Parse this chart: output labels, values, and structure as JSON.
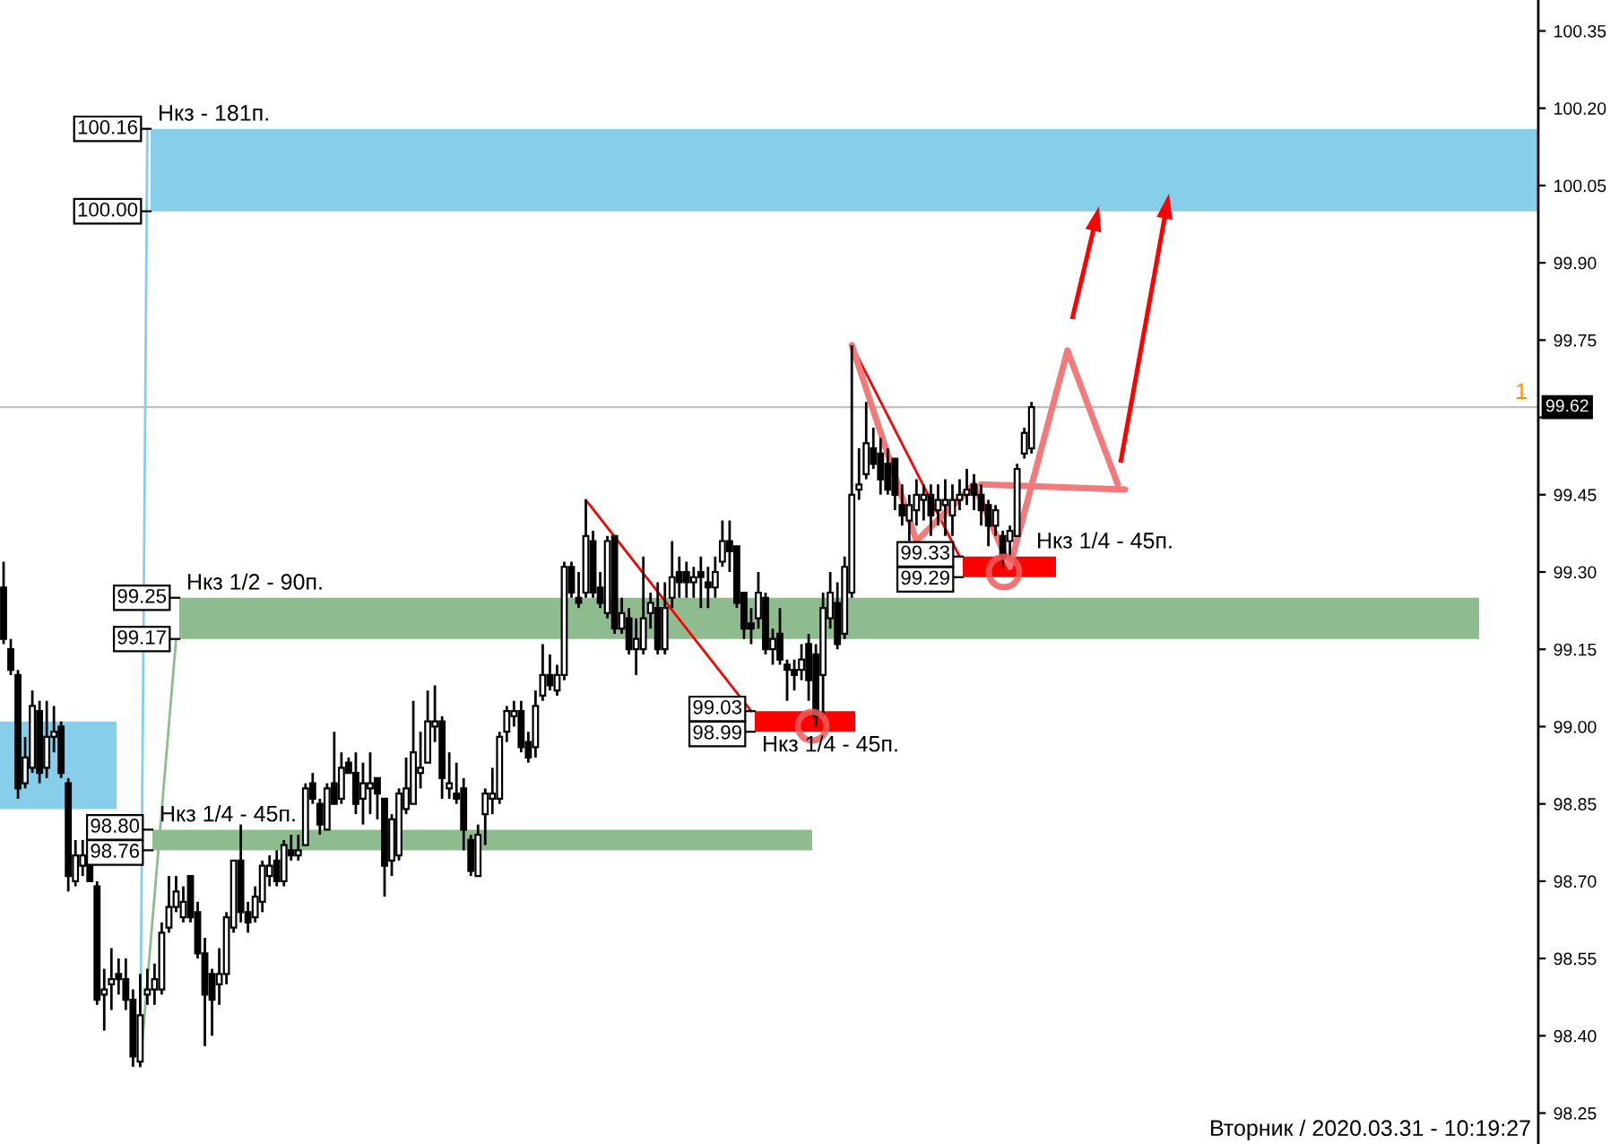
{
  "chart_data": {
    "type": "candlestick",
    "categories": [
      null,
      null,
      null,
      null,
      null,
      null,
      null,
      null,
      null,
      null,
      null,
      null,
      null,
      null,
      null,
      null,
      null,
      null,
      null,
      null,
      null,
      null,
      null,
      null,
      null,
      null,
      null,
      null,
      null,
      null,
      null,
      null,
      null,
      null,
      null,
      null,
      null,
      null,
      null,
      null,
      null,
      null,
      null,
      null,
      null,
      null,
      null,
      null,
      null,
      null,
      null,
      null,
      null,
      null,
      null,
      null,
      null,
      null,
      null,
      null,
      null,
      null,
      null,
      null,
      null,
      null,
      null,
      null,
      null,
      null,
      null,
      null,
      null,
      null,
      null,
      null,
      null,
      null,
      null,
      null,
      null,
      null,
      null,
      null,
      null,
      null,
      null,
      null,
      null,
      null,
      null,
      null,
      null,
      null,
      null,
      null,
      null,
      null,
      null,
      null,
      null,
      null,
      null,
      null,
      null,
      null,
      null,
      null,
      null,
      null,
      null,
      null,
      null,
      null,
      null,
      null,
      null,
      null,
      null,
      null,
      null,
      null,
      null,
      null,
      null,
      null,
      null,
      null,
      null,
      null,
      null,
      null,
      null,
      null,
      null,
      null,
      null,
      null,
      null,
      null,
      null,
      null,
      null,
      null,
      null,
      null,
      null,
      null,
      null,
      null,
      null,
      null,
      null,
      null,
      null,
      null,
      null,
      null,
      null,
      null,
      null,
      null,
      null,
      null,
      null,
      null,
      null,
      null,
      null,
      null,
      null,
      null,
      null,
      null,
      null,
      null,
      null,
      null,
      null,
      null,
      null,
      null,
      null,
      null,
      null,
      null,
      null,
      null,
      null,
      null,
      null,
      null,
      null,
      null,
      null,
      null,
      null,
      null,
      null,
      null,
      null,
      null,
      null,
      null,
      null,
      null,
      null,
      null,
      null,
      null,
      null,
      null,
      null,
      null
    ],
    "ohlc": [
      [
        99.27,
        99.32,
        99.16,
        99.17
      ],
      [
        99.15,
        99.17,
        99.1,
        99.11
      ],
      [
        99.1,
        99.11,
        98.86,
        98.88
      ],
      [
        98.89,
        98.98,
        98.88,
        98.94
      ],
      [
        98.92,
        99.07,
        98.91,
        99.04
      ],
      [
        99.03,
        99.05,
        98.89,
        98.91
      ],
      [
        98.92,
        99.05,
        98.9,
        98.98
      ],
      [
        98.98,
        99.04,
        98.95,
        98.99
      ],
      [
        99.0,
        99.01,
        98.9,
        98.91
      ],
      [
        98.89,
        98.9,
        98.68,
        98.71
      ],
      [
        98.7,
        98.78,
        98.69,
        98.75
      ],
      [
        98.73,
        98.78,
        98.71,
        98.75
      ],
      [
        98.74,
        98.75,
        98.7,
        98.7
      ],
      [
        98.69,
        98.7,
        98.46,
        98.47
      ],
      [
        98.48,
        98.53,
        98.41,
        98.49
      ],
      [
        98.5,
        98.57,
        98.45,
        98.51
      ],
      [
        98.52,
        98.55,
        98.48,
        98.51
      ],
      [
        98.51,
        98.55,
        98.45,
        98.47
      ],
      [
        98.47,
        98.49,
        98.34,
        98.36
      ],
      [
        98.35,
        98.52,
        98.34,
        98.44
      ],
      [
        98.48,
        98.53,
        98.46,
        98.49
      ],
      [
        98.49,
        98.54,
        98.46,
        98.51
      ],
      [
        98.49,
        98.62,
        98.48,
        98.6
      ],
      [
        98.61,
        98.71,
        98.6,
        98.65
      ],
      [
        98.65,
        98.71,
        98.64,
        98.68
      ],
      [
        98.63,
        98.69,
        98.62,
        98.66
      ],
      [
        98.71,
        98.71,
        98.62,
        98.63
      ],
      [
        98.64,
        98.66,
        98.55,
        98.56
      ],
      [
        98.56,
        98.59,
        98.38,
        98.48
      ],
      [
        98.52,
        98.53,
        98.4,
        98.47
      ],
      [
        98.5,
        98.57,
        98.46,
        98.52
      ],
      [
        98.52,
        98.64,
        98.5,
        98.63
      ],
      [
        98.61,
        98.74,
        98.6,
        98.74
      ],
      [
        98.74,
        98.81,
        98.62,
        98.64
      ],
      [
        98.64,
        98.66,
        98.6,
        98.62
      ],
      [
        98.63,
        98.69,
        98.62,
        98.67
      ],
      [
        98.66,
        98.74,
        98.64,
        98.73
      ],
      [
        98.71,
        98.75,
        98.69,
        98.73
      ],
      [
        98.74,
        98.76,
        98.69,
        98.7
      ],
      [
        98.7,
        98.78,
        98.69,
        98.77
      ],
      [
        98.76,
        98.79,
        98.74,
        98.75
      ],
      [
        98.75,
        98.79,
        98.74,
        98.76
      ],
      [
        98.77,
        98.89,
        98.77,
        98.88
      ],
      [
        98.89,
        98.91,
        98.85,
        98.86
      ],
      [
        98.85,
        98.86,
        98.79,
        98.81
      ],
      [
        98.8,
        98.89,
        98.8,
        98.88
      ],
      [
        98.89,
        98.99,
        98.85,
        98.85
      ],
      [
        98.86,
        98.95,
        98.85,
        98.92
      ],
      [
        98.93,
        98.94,
        98.91,
        98.91
      ],
      [
        98.91,
        98.95,
        98.83,
        98.85
      ],
      [
        98.86,
        98.93,
        98.81,
        98.89
      ],
      [
        98.88,
        98.95,
        98.83,
        98.89
      ],
      [
        98.9,
        98.9,
        98.82,
        98.87
      ],
      [
        98.86,
        98.86,
        98.67,
        98.73
      ],
      [
        98.74,
        98.83,
        98.71,
        98.82
      ],
      [
        98.75,
        98.88,
        98.74,
        98.87
      ],
      [
        98.84,
        98.94,
        98.83,
        98.88
      ],
      [
        98.85,
        99.05,
        98.85,
        98.95
      ],
      [
        98.91,
        98.99,
        98.88,
        98.92
      ],
      [
        98.93,
        99.07,
        98.93,
        99.01
      ],
      [
        99.0,
        99.08,
        98.97,
        99.01
      ],
      [
        99.01,
        99.02,
        98.86,
        98.9
      ],
      [
        98.88,
        98.95,
        98.86,
        98.89
      ],
      [
        98.87,
        98.93,
        98.85,
        98.86
      ],
      [
        98.88,
        98.9,
        98.76,
        98.8
      ],
      [
        98.78,
        98.79,
        98.71,
        98.72
      ],
      [
        98.71,
        98.81,
        98.71,
        98.79
      ],
      [
        98.83,
        98.88,
        98.77,
        98.87
      ],
      [
        98.86,
        98.92,
        98.83,
        98.87
      ],
      [
        98.86,
        98.99,
        98.85,
        98.98
      ],
      [
        98.99,
        99.04,
        98.97,
        99.03
      ],
      [
        99.02,
        99.05,
        99.0,
        99.03
      ],
      [
        99.03,
        99.05,
        98.95,
        98.96
      ],
      [
        98.97,
        98.99,
        98.93,
        98.94
      ],
      [
        98.96,
        99.07,
        98.94,
        99.04
      ],
      [
        99.06,
        99.16,
        99.05,
        99.1
      ],
      [
        99.1,
        99.14,
        99.07,
        99.08
      ],
      [
        99.07,
        99.12,
        99.06,
        99.1
      ],
      [
        99.1,
        99.32,
        99.09,
        99.31
      ],
      [
        99.31,
        99.32,
        99.25,
        99.26
      ],
      [
        99.25,
        99.3,
        99.23,
        99.24
      ],
      [
        99.26,
        99.44,
        99.25,
        99.37
      ],
      [
        99.36,
        99.38,
        99.25,
        99.26
      ],
      [
        99.27,
        99.3,
        99.23,
        99.24
      ],
      [
        99.22,
        99.37,
        99.21,
        99.36
      ],
      [
        99.37,
        99.37,
        99.18,
        99.19
      ],
      [
        99.19,
        99.25,
        99.18,
        99.22
      ],
      [
        99.21,
        99.23,
        99.14,
        99.15
      ],
      [
        99.15,
        99.21,
        99.1,
        99.17
      ],
      [
        99.15,
        99.33,
        99.14,
        99.21
      ],
      [
        99.22,
        99.26,
        99.19,
        99.24
      ],
      [
        99.23,
        99.28,
        99.14,
        99.15
      ],
      [
        99.15,
        99.28,
        99.14,
        99.23
      ],
      [
        99.25,
        99.36,
        99.23,
        99.29
      ],
      [
        99.3,
        99.33,
        99.25,
        99.28
      ],
      [
        99.3,
        99.32,
        99.25,
        99.28
      ],
      [
        99.28,
        99.31,
        99.25,
        99.29
      ],
      [
        99.3,
        99.33,
        99.23,
        99.29
      ],
      [
        99.28,
        99.31,
        99.23,
        99.27
      ],
      [
        99.27,
        99.33,
        99.25,
        99.3
      ],
      [
        99.32,
        99.4,
        99.31,
        99.36
      ],
      [
        99.36,
        99.4,
        99.3,
        99.34
      ],
      [
        99.35,
        99.35,
        99.23,
        99.24
      ],
      [
        99.26,
        99.26,
        99.17,
        99.19
      ],
      [
        99.2,
        99.23,
        99.16,
        99.19
      ],
      [
        99.21,
        99.3,
        99.19,
        99.26
      ],
      [
        99.25,
        99.26,
        99.14,
        99.15
      ],
      [
        99.15,
        99.19,
        99.12,
        99.17
      ],
      [
        99.18,
        99.23,
        99.12,
        99.13
      ],
      [
        99.12,
        99.13,
        99.05,
        99.11
      ],
      [
        99.11,
        99.13,
        99.07,
        99.1
      ],
      [
        99.11,
        99.16,
        99.09,
        99.13
      ],
      [
        99.16,
        99.18,
        99.05,
        99.09
      ],
      [
        99.14,
        99.16,
        99.0,
        99.02
      ],
      [
        99.1,
        99.26,
        99.02,
        99.23
      ],
      [
        99.21,
        99.3,
        99.19,
        99.26
      ],
      [
        99.24,
        99.28,
        99.15,
        99.16
      ],
      [
        99.18,
        99.33,
        99.17,
        99.31
      ],
      [
        99.26,
        99.74,
        99.25,
        99.45
      ],
      [
        99.46,
        99.54,
        99.44,
        99.47
      ],
      [
        99.49,
        99.63,
        99.48,
        99.55
      ],
      [
        99.54,
        99.58,
        99.5,
        99.51
      ],
      [
        99.53,
        99.56,
        99.45,
        99.48
      ],
      [
        99.51,
        99.54,
        99.45,
        99.46
      ],
      [
        99.52,
        99.52,
        99.42,
        99.45
      ],
      [
        99.43,
        99.47,
        99.39,
        99.41
      ],
      [
        99.4,
        99.45,
        99.36,
        99.43
      ],
      [
        99.42,
        99.48,
        99.39,
        99.45
      ],
      [
        99.44,
        99.47,
        99.4,
        99.45
      ],
      [
        99.45,
        99.47,
        99.37,
        99.41
      ],
      [
        99.42,
        99.47,
        99.39,
        99.44
      ],
      [
        99.43,
        99.48,
        99.37,
        99.44
      ],
      [
        99.41,
        99.47,
        99.37,
        99.44
      ],
      [
        99.44,
        99.48,
        99.42,
        99.45
      ],
      [
        99.45,
        99.5,
        99.43,
        99.46
      ],
      [
        99.47,
        99.49,
        99.42,
        99.45
      ],
      [
        99.45,
        99.47,
        99.39,
        99.42
      ],
      [
        99.43,
        99.44,
        99.35,
        99.39
      ],
      [
        99.39,
        99.43,
        99.37,
        99.42
      ],
      [
        99.37,
        99.38,
        99.31,
        99.33
      ],
      [
        99.36,
        99.39,
        99.33,
        99.38
      ],
      [
        99.37,
        99.51,
        99.37,
        99.5
      ],
      [
        99.53,
        99.58,
        99.52,
        99.57
      ],
      [
        99.54,
        99.63,
        99.53,
        99.62
      ],
      null,
      null,
      null,
      null,
      null,
      null,
      null,
      null,
      null,
      null,
      null,
      null,
      null,
      null,
      null,
      null,
      null,
      null,
      null,
      null,
      null,
      null,
      null,
      null,
      null,
      null,
      null,
      null,
      null,
      null,
      null,
      null,
      null,
      null,
      null,
      null,
      null,
      null,
      null,
      null,
      null,
      null,
      null,
      null,
      null,
      null,
      null,
      null,
      null,
      null,
      null,
      null,
      null,
      null,
      null,
      null,
      null,
      null,
      null,
      null,
      null,
      null,
      null,
      null,
      null,
      null,
      null,
      null,
      null,
      null
    ],
    "series": [
      {
        "type": "line",
        "color": "#87ceeb",
        "values": [
          null,
          null,
          null,
          null,
          null,
          null,
          null,
          null,
          null,
          null,
          null,
          null,
          null,
          null,
          null,
          null,
          null,
          null,
          null,
          98.34,
          100.16,
          null,
          null,
          null,
          null,
          null,
          null,
          null,
          null,
          null,
          null,
          null,
          null,
          null,
          null,
          null,
          null,
          null,
          null,
          null,
          null,
          null,
          null,
          null,
          null,
          null,
          null,
          null,
          null,
          null,
          null,
          null,
          null,
          null,
          null,
          null,
          null,
          null,
          null,
          null,
          null,
          null,
          null,
          null,
          null,
          null,
          null,
          null,
          null,
          null,
          null,
          null,
          null,
          null,
          null,
          null,
          null,
          null,
          null,
          null,
          null,
          null,
          null,
          null,
          null,
          null,
          null,
          null,
          null,
          null,
          null,
          null,
          null,
          null,
          null,
          null,
          null,
          null,
          null,
          null,
          null,
          null,
          null,
          null,
          null,
          null,
          null,
          null,
          null,
          null,
          null,
          null,
          null,
          null,
          null,
          null,
          null,
          null,
          null,
          null,
          null,
          null,
          null,
          null,
          null,
          null,
          null,
          null,
          null,
          null,
          null,
          null,
          null,
          null,
          null,
          null,
          null,
          null,
          null,
          null,
          null,
          null,
          null,
          null,
          null,
          null,
          null,
          null,
          null,
          null,
          null,
          null,
          null,
          null,
          null,
          null,
          null,
          null,
          null,
          null,
          null,
          null,
          null,
          null,
          null,
          null,
          null,
          null,
          null,
          null,
          null,
          null,
          null,
          null,
          null,
          null,
          null,
          null,
          null,
          null,
          null,
          null,
          null,
          null,
          null,
          null,
          null,
          null,
          null,
          null,
          null,
          null,
          null,
          null,
          null,
          null,
          null,
          null,
          null,
          null,
          null,
          null,
          null,
          null,
          null,
          null,
          null,
          null,
          null,
          null,
          null,
          null,
          null,
          null
        ]
      },
      {
        "type": "line",
        "color": "#8fbc8f",
        "values": [
          null,
          null,
          null,
          null,
          null,
          null,
          null,
          null,
          null,
          null,
          null,
          null,
          null,
          null,
          null,
          null,
          null,
          null,
          null,
          98.34,
          null,
          null,
          null,
          null,
          99.17,
          null,
          null,
          null,
          null,
          null,
          null,
          null,
          null,
          null,
          null,
          null,
          null,
          null,
          null,
          null,
          null,
          null,
          null,
          null,
          null,
          null,
          null,
          null,
          null,
          null,
          null,
          null,
          null,
          null,
          null,
          null,
          null,
          null,
          null,
          null,
          null,
          null,
          null,
          null,
          null,
          null,
          null,
          null,
          null,
          null,
          null,
          null,
          null,
          null,
          null,
          null,
          null,
          null,
          null,
          null,
          null,
          null,
          null,
          null,
          null,
          null,
          null,
          null,
          null,
          null,
          null,
          null,
          null,
          null,
          null,
          null,
          null,
          null,
          null,
          null,
          null,
          null,
          null,
          null,
          null,
          null,
          null,
          null,
          null,
          null,
          null,
          null,
          null,
          null,
          null,
          null,
          null,
          null,
          null,
          null,
          null,
          null,
          null,
          null,
          null,
          null,
          null,
          null,
          null,
          null,
          null,
          null,
          null,
          null,
          null,
          null,
          null,
          null,
          null,
          null,
          null,
          null,
          null,
          null,
          null,
          null,
          null,
          null,
          null,
          null,
          null,
          null,
          null,
          null,
          null,
          null,
          null,
          null,
          null,
          null,
          null,
          null,
          null,
          null,
          null,
          null,
          null,
          null,
          null,
          null,
          null,
          null,
          null,
          null,
          null,
          null,
          null,
          null,
          null,
          null,
          null,
          null,
          null,
          null,
          null,
          null,
          null,
          null,
          null,
          null,
          null,
          null,
          null,
          null,
          null,
          null,
          null,
          null,
          null,
          null,
          null,
          null,
          null,
          null,
          null,
          null,
          null,
          null,
          null,
          null,
          null,
          null,
          null,
          null
        ]
      },
      {
        "type": "line",
        "color": "#ff0000",
        "values": [
          null,
          null,
          null,
          null,
          null,
          null,
          null,
          null,
          null,
          null,
          null,
          null,
          null,
          null,
          null,
          null,
          null,
          null,
          null,
          null,
          null,
          null,
          null,
          null,
          null,
          null,
          null,
          null,
          null,
          null,
          null,
          null,
          null,
          null,
          null,
          null,
          null,
          null,
          null,
          null,
          null,
          null,
          null,
          null,
          null,
          null,
          null,
          null,
          null,
          null,
          null,
          null,
          null,
          null,
          null,
          null,
          null,
          null,
          null,
          null,
          null,
          null,
          null,
          null,
          null,
          null,
          null,
          null,
          null,
          null,
          null,
          null,
          null,
          null,
          null,
          null,
          null,
          null,
          null,
          null,
          null,
          99.44,
          null,
          null,
          null,
          null,
          null,
          null,
          null,
          null,
          null,
          null,
          null,
          null,
          null,
          null,
          null,
          null,
          null,
          null,
          null,
          null,
          null,
          null,
          99.03,
          null,
          null,
          null,
          null,
          null,
          null,
          null,
          null,
          null,
          null,
          null,
          null,
          null,
          null,
          null,
          null,
          null,
          null,
          null,
          null,
          null,
          null,
          null,
          null,
          null,
          null,
          null,
          null,
          null,
          null,
          null,
          null,
          null,
          null,
          null,
          null,
          null,
          null,
          null,
          null,
          null,
          null,
          null,
          null,
          null,
          null,
          null,
          null,
          null,
          null,
          null,
          null,
          null,
          null,
          null,
          null,
          null,
          null,
          null,
          null,
          null,
          null,
          null,
          null,
          null,
          null,
          null,
          null,
          null,
          null,
          null,
          null,
          null,
          null,
          null,
          null,
          null,
          null,
          null,
          null,
          null,
          null,
          null,
          null,
          null,
          null,
          null,
          null,
          null,
          null,
          null,
          null,
          null,
          null,
          null,
          null,
          null,
          null,
          null,
          null,
          null,
          null,
          null,
          null,
          null,
          null,
          null,
          null,
          null
        ]
      },
      {
        "type": "line",
        "color": "#ff0000",
        "values": [
          null,
          null,
          null,
          null,
          null,
          null,
          null,
          null,
          null,
          null,
          null,
          null,
          null,
          null,
          null,
          null,
          null,
          null,
          null,
          null,
          null,
          null,
          null,
          null,
          null,
          null,
          null,
          null,
          null,
          null,
          null,
          null,
          null,
          null,
          null,
          null,
          null,
          null,
          null,
          null,
          null,
          null,
          null,
          null,
          null,
          null,
          null,
          null,
          null,
          null,
          null,
          null,
          null,
          null,
          null,
          null,
          null,
          null,
          null,
          null,
          null,
          null,
          null,
          null,
          null,
          null,
          null,
          null,
          null,
          null,
          null,
          null,
          null,
          null,
          null,
          null,
          null,
          null,
          null,
          null,
          null,
          null,
          null,
          null,
          null,
          null,
          null,
          null,
          null,
          null,
          null,
          null,
          null,
          null,
          null,
          null,
          null,
          null,
          null,
          null,
          null,
          null,
          null,
          null,
          null,
          null,
          null,
          null,
          null,
          null,
          null,
          null,
          null,
          null,
          null,
          null,
          null,
          null,
          99.74,
          null,
          null,
          null,
          null,
          null,
          null,
          null,
          null,
          null,
          null,
          null,
          null,
          null,
          null,
          99.33,
          null,
          null,
          null,
          null,
          null,
          null,
          null,
          null,
          null,
          null,
          null,
          null,
          null,
          null,
          null,
          null,
          null,
          null,
          null,
          null,
          null,
          null,
          null,
          null,
          null,
          null,
          null,
          null,
          null,
          null,
          null,
          null,
          null,
          null,
          null,
          null,
          null,
          null,
          null,
          null,
          null,
          null,
          null,
          null,
          null,
          null,
          null,
          null,
          null,
          null,
          null,
          null,
          null,
          null,
          null,
          null,
          null,
          null,
          null,
          null,
          null,
          null,
          null,
          null,
          null,
          null,
          null,
          null,
          null,
          null,
          null,
          null,
          null,
          null,
          null,
          null,
          null,
          null,
          null,
          null
        ]
      },
      {
        "type": "line",
        "color": "#f27a7a",
        "values": [
          null,
          null,
          null,
          null,
          null,
          null,
          null,
          null,
          null,
          null,
          null,
          null,
          null,
          null,
          null,
          null,
          null,
          null,
          null,
          null,
          null,
          null,
          null,
          null,
          null,
          null,
          null,
          null,
          null,
          null,
          null,
          null,
          null,
          null,
          null,
          null,
          null,
          null,
          null,
          null,
          null,
          null,
          null,
          null,
          null,
          null,
          null,
          null,
          null,
          null,
          null,
          null,
          null,
          null,
          null,
          null,
          null,
          null,
          null,
          null,
          null,
          null,
          null,
          null,
          null,
          null,
          null,
          null,
          null,
          null,
          null,
          null,
          null,
          null,
          null,
          null,
          null,
          null,
          null,
          null,
          null,
          null,
          null,
          null,
          null,
          null,
          null,
          null,
          null,
          null,
          null,
          null,
          null,
          null,
          null,
          null,
          null,
          null,
          null,
          null,
          null,
          null,
          null,
          null,
          null,
          null,
          null,
          null,
          null,
          null,
          null,
          null,
          null,
          null,
          null,
          null,
          null,
          null,
          99.74,
          null,
          null,
          null,
          null,
          null,
          null,
          null,
          null,
          99.36,
          null,
          null,
          null,
          null,
          null,
          null,
          null,
          99.47,
          null,
          null,
          null,
          null,
          99.31,
          null,
          null,
          null,
          null,
          null,
          null,
          null,
          99.73,
          null,
          null,
          null,
          null,
          null,
          null,
          99.47,
          null,
          null,
          null,
          null,
          null,
          null,
          null,
          null,
          null,
          null,
          null,
          null,
          null,
          null,
          null,
          null,
          null,
          null,
          null,
          null,
          null,
          null,
          null,
          null,
          null,
          null,
          null,
          null,
          null,
          null,
          null,
          null,
          null,
          null,
          null,
          null,
          null,
          null,
          null,
          null,
          null,
          null,
          null,
          null,
          null,
          null,
          null,
          null,
          null,
          null,
          null,
          null,
          null,
          null,
          null,
          null,
          null,
          null
        ]
      },
      {
        "type": "line",
        "color": "#f27a7a",
        "values": [
          null,
          null,
          null,
          null,
          null,
          null,
          null,
          null,
          null,
          null,
          null,
          null,
          null,
          null,
          null,
          null,
          null,
          null,
          null,
          null,
          null,
          null,
          null,
          null,
          null,
          null,
          null,
          null,
          null,
          null,
          null,
          null,
          null,
          null,
          null,
          null,
          null,
          null,
          null,
          null,
          null,
          null,
          null,
          null,
          null,
          null,
          null,
          null,
          null,
          null,
          null,
          null,
          null,
          null,
          null,
          null,
          null,
          null,
          null,
          null,
          null,
          null,
          null,
          null,
          null,
          null,
          null,
          null,
          null,
          null,
          null,
          null,
          null,
          null,
          null,
          null,
          null,
          null,
          null,
          null,
          null,
          null,
          null,
          null,
          null,
          null,
          null,
          null,
          null,
          null,
          null,
          null,
          null,
          null,
          null,
          null,
          null,
          null,
          null,
          null,
          null,
          null,
          null,
          null,
          null,
          null,
          null,
          null,
          null,
          null,
          null,
          null,
          null,
          null,
          null,
          null,
          null,
          null,
          null,
          null,
          null,
          null,
          null,
          null,
          null,
          null,
          null,
          null,
          null,
          null,
          null,
          null,
          null,
          null,
          null,
          null,
          99.47,
          null,
          null,
          null,
          null,
          null,
          null,
          null,
          null,
          null,
          null,
          null,
          null,
          null,
          null,
          null,
          null,
          null,
          null,
          null,
          99.46,
          null,
          null,
          null,
          null,
          null,
          null,
          null,
          null,
          null,
          null,
          null,
          null,
          null,
          null,
          null,
          null,
          null,
          null,
          null,
          null,
          null,
          null,
          null,
          null,
          null,
          null,
          null,
          null,
          null,
          null,
          null,
          null,
          null,
          null,
          null,
          null,
          null,
          null,
          null,
          null,
          null,
          null,
          null,
          null,
          null,
          null,
          null,
          null,
          null,
          null,
          null,
          null,
          null,
          null,
          null,
          null,
          null
        ]
      }
    ],
    "ylim": [
      98.19,
      100.41
    ],
    "yticks": [
      98.25,
      {
        "value": 98.4,
        "label": "98.40"
      },
      98.55,
      {
        "value": 98.7,
        "label": "98.70"
      },
      98.85,
      {
        "value": 99.0,
        "label": "99.00"
      },
      99.15,
      {
        "value": 99.3,
        "label": "99.30"
      },
      99.45,
      {
        "value": 99.6,
        "label": null
      },
      99.75,
      {
        "value": 99.9,
        "label": "99.90"
      },
      100.05,
      {
        "value": 100.2,
        "label": "100.20"
      },
      100.35
    ],
    "tick_labels": "y",
    "ref_lines": [
      {
        "axis": "y",
        "value": 99.62,
        "label": "99.62",
        "color": "#c0c0c0"
      }
    ],
    "bands": [
      {
        "axis": "y",
        "from": 100.0,
        "to": 100.16,
        "label": "Нкз - 181п.",
        "color": "#87ceeb"
      },
      {
        "axis": "y",
        "from": 99.17,
        "to": 99.25,
        "label": "Нкз 1/2 - 90п.",
        "color": "#8fbc8f"
      },
      {
        "axis": "y",
        "from": 98.76,
        "to": 98.8,
        "label": "Нкз 1/4 - 45п.",
        "color": "#8fbc8f"
      },
      {
        "axis": "y",
        "from": 98.99,
        "to": 99.03,
        "label": "Нкз 1/4 - 45п.",
        "color": "#ff0000"
      },
      {
        "axis": "y",
        "from": 99.29,
        "to": 99.33,
        "label": "Нкз 1/4 - 45п.",
        "color": "#ff0000"
      },
      {
        "axis": "y",
        "from": 98.84,
        "to": 99.01,
        "color": "#87ceeb"
      }
    ],
    "annotations": [
      "Вторник / 2020.03.31 - 10:19:27",
      {
        "text": "1",
        "y": 99.62
      },
      {
        "text": "100.16",
        "y": 100.16
      },
      {
        "text": "100.00",
        "y": 100.0
      },
      {
        "text": "99.25",
        "y": 99.25
      },
      {
        "text": "99.17",
        "y": 99.17
      },
      {
        "text": "98.80",
        "y": 98.8
      },
      {
        "text": "98.76",
        "y": 98.76
      },
      {
        "text": "99.03",
        "y": 99.03
      },
      {
        "text": "98.99",
        "y": 98.99
      },
      {
        "text": "99.33",
        "y": 99.33
      },
      {
        "text": "99.29",
        "y": 99.29
      }
    ]
  }
}
